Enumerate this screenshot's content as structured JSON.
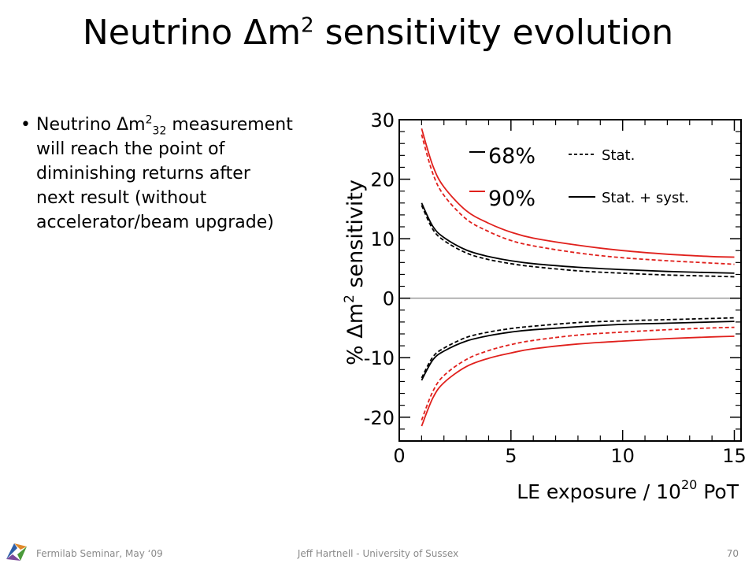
{
  "slide": {
    "title_main": "Neutrino Δm",
    "title_sup": "2",
    "title_rest": " sensitivity evolution"
  },
  "bullet": {
    "lead": "Neutrino Δm",
    "sup": "2",
    "sub": "32",
    "rest": " measurement will reach the point of diminishing returns after next result (without accelerator/beam upgrade)"
  },
  "footer": {
    "left": "Fermilab Seminar, May ‘09",
    "center": "Jeff Hartnell - University of Sussex",
    "page": "70"
  },
  "chart_data": {
    "type": "line",
    "xlabel_main": "LE exposure / 10",
    "xlabel_sup": "20",
    "xlabel_rest": " PoT",
    "ylabel_pre": "% ",
    "ylabel_delta": "Δ",
    "ylabel_m": "m",
    "ylabel_sup": "2",
    "ylabel_rest": " sensitivity",
    "xlim": [
      0,
      15.3
    ],
    "ylim": [
      -24,
      30
    ],
    "x_ticks": [
      "0",
      "5",
      "10",
      "15"
    ],
    "x_tick_values": [
      0,
      5,
      10,
      15
    ],
    "y_ticks": [
      "30",
      "20",
      "10",
      "0",
      "-10",
      "-20"
    ],
    "y_tick_values": [
      30,
      20,
      10,
      0,
      -10,
      -20
    ],
    "legend_placement": "top",
    "legend": {
      "cl68": "68%",
      "cl90": "90%",
      "stat": "Stat.",
      "statsyst": "Stat. + syst."
    },
    "colors": {
      "cl68": "#000000",
      "cl90": "#e0201c",
      "zero_line": "#999999"
    },
    "x": [
      1,
      1.5,
      2,
      3,
      4,
      5,
      6,
      8,
      10,
      12,
      14,
      15
    ],
    "series": [
      {
        "name": "68%",
        "style": "stat",
        "color": "#000000",
        "upper": [
          15.6,
          11.6,
          9.7,
          7.6,
          6.5,
          5.8,
          5.3,
          4.6,
          4.2,
          3.9,
          3.7,
          3.6
        ],
        "lower": [
          -13.4,
          -9.9,
          -8.4,
          -6.6,
          -5.7,
          -5.1,
          -4.7,
          -4.1,
          -3.8,
          -3.6,
          -3.4,
          -3.3
        ]
      },
      {
        "name": "68%",
        "style": "statsyst",
        "color": "#000000",
        "upper": [
          16.0,
          12.1,
          10.2,
          8.1,
          7.0,
          6.3,
          5.8,
          5.2,
          4.8,
          4.5,
          4.3,
          4.2
        ],
        "lower": [
          -13.8,
          -10.4,
          -8.9,
          -7.2,
          -6.3,
          -5.7,
          -5.3,
          -4.8,
          -4.4,
          -4.2,
          -4.0,
          -3.9
        ]
      },
      {
        "name": "90%",
        "style": "stat",
        "color": "#e0201c",
        "upper": [
          27.5,
          21.0,
          17.3,
          13.3,
          11.2,
          9.7,
          8.8,
          7.6,
          6.8,
          6.3,
          5.9,
          5.7
        ],
        "lower": [
          -20.5,
          -15.7,
          -13.0,
          -10.3,
          -8.8,
          -7.8,
          -7.1,
          -6.2,
          -5.7,
          -5.3,
          -5.0,
          -4.9
        ]
      },
      {
        "name": "90%",
        "style": "statsyst",
        "color": "#e0201c",
        "upper": [
          28.5,
          22.3,
          18.7,
          14.7,
          12.6,
          11.1,
          10.1,
          8.9,
          8.0,
          7.4,
          7.0,
          6.9
        ],
        "lower": [
          -21.5,
          -16.8,
          -14.2,
          -11.5,
          -10.1,
          -9.2,
          -8.5,
          -7.7,
          -7.2,
          -6.8,
          -6.5,
          -6.4
        ]
      }
    ]
  }
}
